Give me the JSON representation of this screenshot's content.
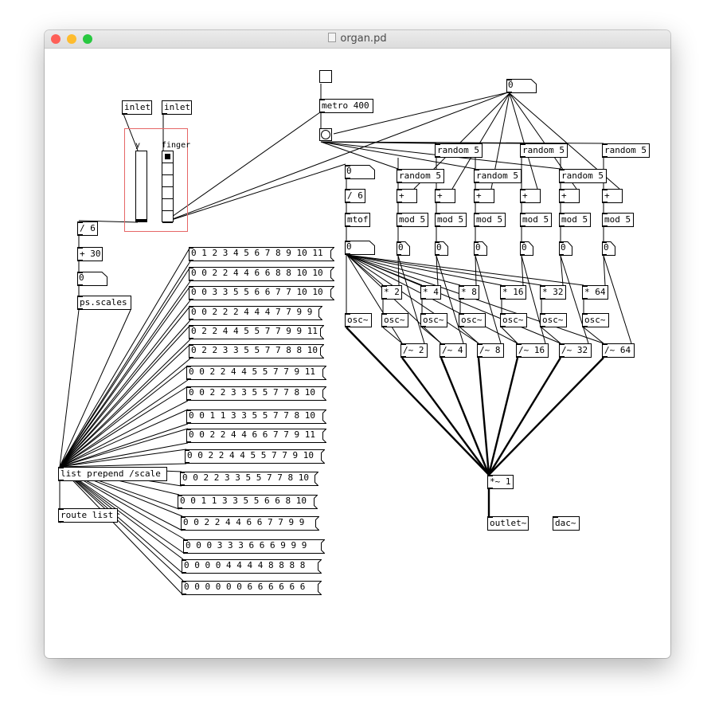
{
  "window": {
    "title": "organ.pd",
    "traffic_lights": {
      "close": "#fe5f57",
      "minimize": "#febc2e",
      "zoom": "#28c840"
    }
  },
  "colors": {
    "canvas_border": "#e66666",
    "ink": "#000000"
  },
  "gui": {
    "slider_label": "y",
    "radio_label": "finger",
    "slider_value_fraction": 0.0,
    "radio_selected_index": 0,
    "radio_count": 6,
    "toggle_state": false
  },
  "objects": {
    "inlet_y": "inlet",
    "inlet_finger": "inlet",
    "metro": "metro 400",
    "div6": "/ 6",
    "plus30": "+ 30",
    "ps_scales": "ps.scales",
    "list_prepend": "list prepend /scale",
    "route_list": "route list",
    "div6b": "/ 6",
    "mtof": "mtof",
    "random": [
      "random 5",
      "random 5",
      "random 5",
      "random 5",
      "random 5",
      "random 5"
    ],
    "plus": [
      "+",
      "+",
      "+",
      "+",
      "+",
      "+"
    ],
    "mod": [
      "mod 5",
      "mod 5",
      "mod 5",
      "mod 5",
      "mod 5",
      "mod 5"
    ],
    "mul": [
      "* 2",
      "* 4",
      "* 8",
      "* 16",
      "* 32",
      "* 64"
    ],
    "osc": [
      "osc~",
      "osc~",
      "osc~",
      "osc~",
      "osc~",
      "osc~",
      "osc~"
    ],
    "divsig": [
      "/~ 2",
      "/~ 4",
      "/~ 8",
      "/~ 16",
      "/~ 32",
      "/~ 64"
    ],
    "mulsig": "*~ 1",
    "outlet": "outlet~",
    "dac": "dac~"
  },
  "numbers": {
    "metro_in": "0",
    "scale_index": "0",
    "mtof_in": "0",
    "mtof_out": "0",
    "mods": [
      "0",
      "0",
      "0",
      "0",
      "0",
      "0"
    ]
  },
  "messages": [
    "0 1 2 3 4 5 6 7 8 9 10 11",
    "0 0 2 2 4 4 6 6 8 8 10 10",
    "0 0 3 3 5 5 6 6 7 7 10 10",
    "0 0 2 2 2 4 4 4 7 7 9 9",
    "0 2 2 4 4 5 5 7 7 9 9 11",
    "0 2 2 3 3 5 5 7 7 8 8 10",
    "0 0 2 2 4 4 5 5 7 7 9 11",
    "0 0 2 2 3 3 5 5 7 7 8 10",
    "0 0 1 1 3 3 5 5 7 7 8 10",
    "0 0 2 2 4 4 6 6 7 7 9 11",
    "0 0 2 2 4 4 5 5 7 7 9 10",
    "0 0 2 2 3 3 5 5 7 7 8 10",
    "0 0 1 1 3 3 5 5 6 6 8 10",
    "0 0 2 2 4 4 6 6 7 7 9 9",
    "0 0 0 3 3 3 6 6 6 9 9 9",
    "0 0 0 0 4 4 4 4 8 8 8 8",
    "0 0 0 0 0 0 6 6 6 6 6 6"
  ]
}
